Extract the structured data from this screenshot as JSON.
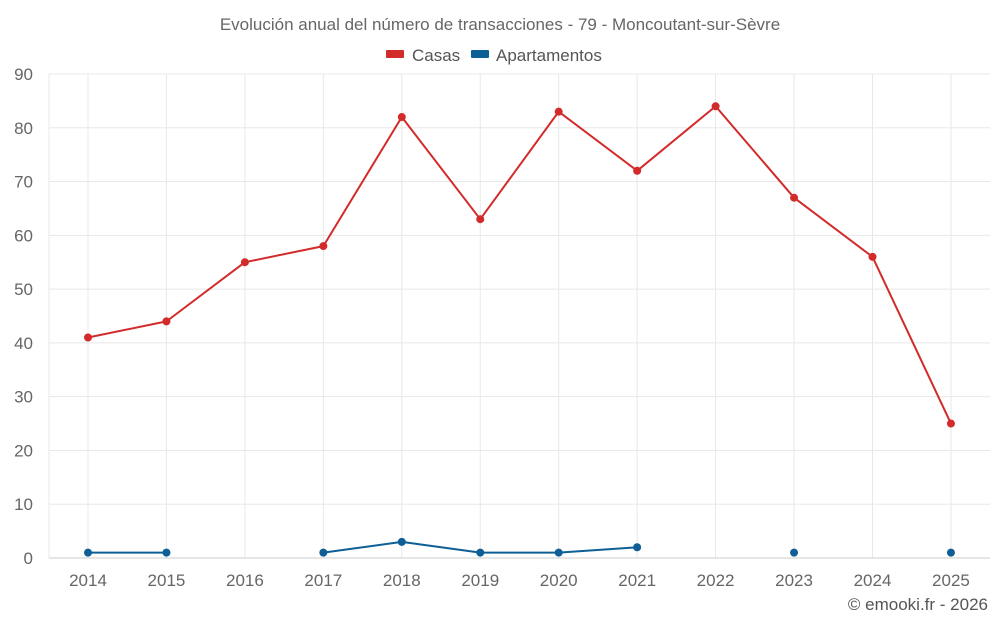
{
  "chart_data": {
    "type": "line",
    "title": "Evolución anual del número de transacciones - 79 - Moncoutant-sur-Sèvre",
    "credit": "© emooki.fr - 2026",
    "xlabel": "",
    "ylabel": "",
    "ylim": [
      0,
      90
    ],
    "yticks": [
      0,
      10,
      20,
      30,
      40,
      50,
      60,
      70,
      80,
      90
    ],
    "grid": true,
    "legend_position": "top-center",
    "categories": [
      "2014",
      "2015",
      "2016",
      "2017",
      "2018",
      "2019",
      "2020",
      "2021",
      "2022",
      "2023",
      "2024",
      "2025"
    ],
    "series": [
      {
        "name": "Casas",
        "color": "#d32a2a",
        "values": [
          41,
          44,
          55,
          58,
          82,
          63,
          83,
          72,
          84,
          67,
          56,
          25
        ]
      },
      {
        "name": "Apartamentos",
        "color": "#0e5f96",
        "values": [
          1,
          1,
          null,
          1,
          3,
          1,
          1,
          2,
          null,
          1,
          null,
          1
        ]
      }
    ]
  }
}
